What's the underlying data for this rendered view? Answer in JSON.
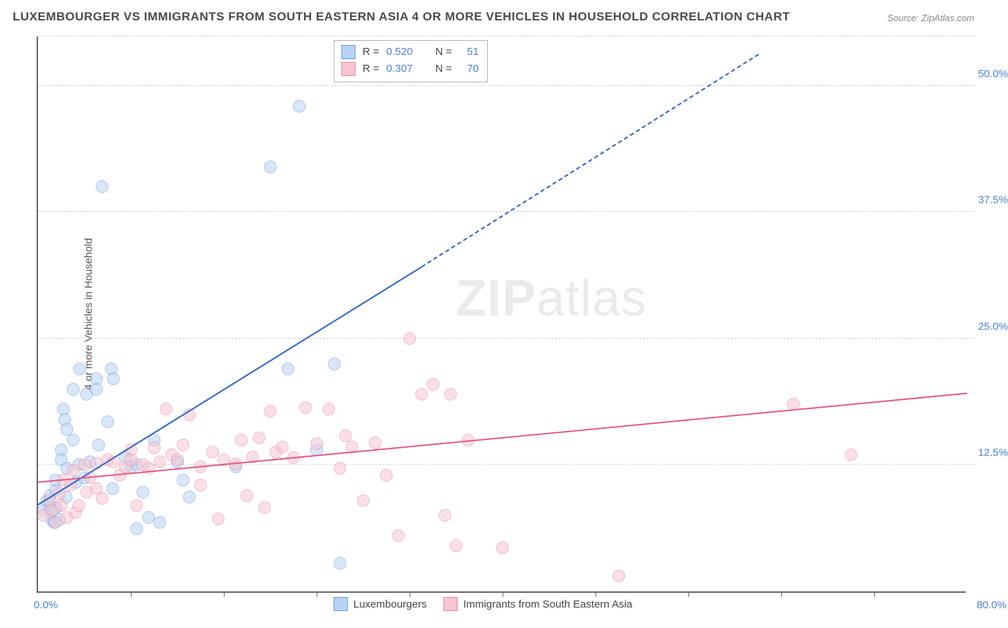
{
  "title": "LUXEMBOURGER VS IMMIGRANTS FROM SOUTH EASTERN ASIA 4 OR MORE VEHICLES IN HOUSEHOLD CORRELATION CHART",
  "source": "Source: ZipAtlas.com",
  "yaxis_title": "4 or more Vehicles in Household",
  "watermark_a": "ZIP",
  "watermark_b": "atlas",
  "chart": {
    "type": "scatter",
    "xlim": [
      0,
      80
    ],
    "ylim": [
      0,
      55
    ],
    "x_label_min": "0.0%",
    "x_label_max": "80.0%",
    "y_ticks": [
      12.5,
      25.0,
      37.5,
      50.0
    ],
    "y_tick_labels": [
      "12.5%",
      "25.0%",
      "37.5%",
      "50.0%"
    ],
    "x_minor_ticks": [
      8,
      16,
      24,
      32,
      40,
      48,
      56,
      64,
      72
    ],
    "grid_color": "#d8d8d8",
    "background_color": "#ffffff",
    "series": [
      {
        "name": "Luxembourgers",
        "color_fill": "#b9d3f3",
        "color_stroke": "#6699e0",
        "marker_radius": 9,
        "fill_opacity": 0.55,
        "trend": {
          "x1": 0,
          "y1": 8.5,
          "x2": 33,
          "y2": 32,
          "solid_until_x": 33,
          "ext_x": 62,
          "ext_y": 53,
          "color": "#2b63c9"
        },
        "points": [
          [
            0.5,
            8
          ],
          [
            0.8,
            9
          ],
          [
            1,
            9.5
          ],
          [
            1,
            8.2
          ],
          [
            1.2,
            7
          ],
          [
            1.4,
            6.8
          ],
          [
            1.5,
            10
          ],
          [
            1.5,
            11
          ],
          [
            1.6,
            8.3
          ],
          [
            1.8,
            7.1
          ],
          [
            2,
            14
          ],
          [
            2,
            13
          ],
          [
            2.2,
            18
          ],
          [
            2.3,
            17
          ],
          [
            2.4,
            9.3
          ],
          [
            2.5,
            12.2
          ],
          [
            2.5,
            16
          ],
          [
            3,
            15
          ],
          [
            3,
            20
          ],
          [
            3.3,
            10.8
          ],
          [
            3.5,
            12.5
          ],
          [
            3.6,
            22
          ],
          [
            4,
            11.2
          ],
          [
            4.2,
            19.5
          ],
          [
            4.5,
            12.8
          ],
          [
            5,
            21
          ],
          [
            5,
            20
          ],
          [
            5.2,
            14.5
          ],
          [
            5.5,
            40
          ],
          [
            6,
            16.8
          ],
          [
            6.3,
            22
          ],
          [
            6.4,
            10.2
          ],
          [
            6.5,
            21
          ],
          [
            7.5,
            13.3
          ],
          [
            8,
            12.3
          ],
          [
            8.5,
            12.5
          ],
          [
            8.5,
            6.2
          ],
          [
            9,
            9.8
          ],
          [
            9.5,
            7.3
          ],
          [
            10,
            15
          ],
          [
            10.5,
            6.8
          ],
          [
            12,
            12.8
          ],
          [
            12.5,
            11
          ],
          [
            13,
            9.3
          ],
          [
            17,
            12.3
          ],
          [
            20,
            42
          ],
          [
            21.5,
            22
          ],
          [
            22.5,
            48
          ],
          [
            24,
            14
          ],
          [
            25.5,
            22.5
          ],
          [
            26,
            2.8
          ]
        ]
      },
      {
        "name": "Immigrants from South Eastern Asia",
        "color_fill": "#f6c6d2",
        "color_stroke": "#e887a2",
        "marker_radius": 9,
        "fill_opacity": 0.55,
        "trend": {
          "x1": 0,
          "y1": 10.7,
          "x2": 80,
          "y2": 19.5,
          "solid_until_x": 80,
          "color": "#e45a83"
        },
        "points": [
          [
            0.5,
            7.5
          ],
          [
            1,
            9
          ],
          [
            1.2,
            8
          ],
          [
            1.5,
            6.8
          ],
          [
            1.8,
            9.7
          ],
          [
            2,
            8.5
          ],
          [
            2.2,
            11
          ],
          [
            2.5,
            7.3
          ],
          [
            2.8,
            10.5
          ],
          [
            3,
            12
          ],
          [
            3.2,
            7.8
          ],
          [
            3.5,
            8.5
          ],
          [
            4,
            12.5
          ],
          [
            4.2,
            9.8
          ],
          [
            4.5,
            11.3
          ],
          [
            5,
            10.2
          ],
          [
            5,
            12.7
          ],
          [
            5.5,
            9.2
          ],
          [
            6,
            13
          ],
          [
            6.5,
            12.8
          ],
          [
            7,
            11.5
          ],
          [
            7.5,
            12.3
          ],
          [
            8,
            14
          ],
          [
            8,
            13
          ],
          [
            8.5,
            8.5
          ],
          [
            9,
            12.5
          ],
          [
            9.5,
            12.2
          ],
          [
            10,
            14.2
          ],
          [
            10.5,
            12.8
          ],
          [
            11,
            18
          ],
          [
            11.5,
            13.5
          ],
          [
            12,
            13
          ],
          [
            12.5,
            14.5
          ],
          [
            13,
            17.5
          ],
          [
            14,
            12.3
          ],
          [
            14,
            10.5
          ],
          [
            15,
            13.8
          ],
          [
            15.5,
            7.2
          ],
          [
            16,
            13
          ],
          [
            17,
            12.6
          ],
          [
            17.5,
            15
          ],
          [
            18,
            9.5
          ],
          [
            18.5,
            13.3
          ],
          [
            19,
            15.2
          ],
          [
            19.5,
            8.3
          ],
          [
            20,
            17.8
          ],
          [
            20.5,
            13.8
          ],
          [
            21,
            14.3
          ],
          [
            22,
            13.2
          ],
          [
            23,
            18.2
          ],
          [
            24,
            14.6
          ],
          [
            25,
            18
          ],
          [
            26,
            12.2
          ],
          [
            26.5,
            15.4
          ],
          [
            27,
            14.3
          ],
          [
            28,
            9
          ],
          [
            29,
            14.7
          ],
          [
            30,
            11.5
          ],
          [
            31,
            5.5
          ],
          [
            32,
            25
          ],
          [
            33,
            19.5
          ],
          [
            34,
            20.5
          ],
          [
            35,
            7.5
          ],
          [
            35.5,
            19.5
          ],
          [
            36,
            4.5
          ],
          [
            37,
            15
          ],
          [
            40,
            4.3
          ],
          [
            50,
            1.5
          ],
          [
            65,
            18.5
          ],
          [
            70,
            13.5
          ]
        ]
      }
    ]
  },
  "stats": [
    {
      "swatch_fill": "#b9d3f3",
      "swatch_stroke": "#6699e0",
      "r_label": "R =",
      "r_val": "0.520",
      "n_label": "N =",
      "n_val": "51"
    },
    {
      "swatch_fill": "#f6c6d2",
      "swatch_stroke": "#e887a2",
      "r_label": "R =",
      "r_val": "0.307",
      "n_label": "N =",
      "n_val": "70"
    }
  ],
  "legend": [
    {
      "swatch_fill": "#b9d3f3",
      "swatch_stroke": "#6699e0",
      "label": "Luxembourgers"
    },
    {
      "swatch_fill": "#f6c6d2",
      "swatch_stroke": "#e887a2",
      "label": "Immigrants from South Eastern Asia"
    }
  ]
}
